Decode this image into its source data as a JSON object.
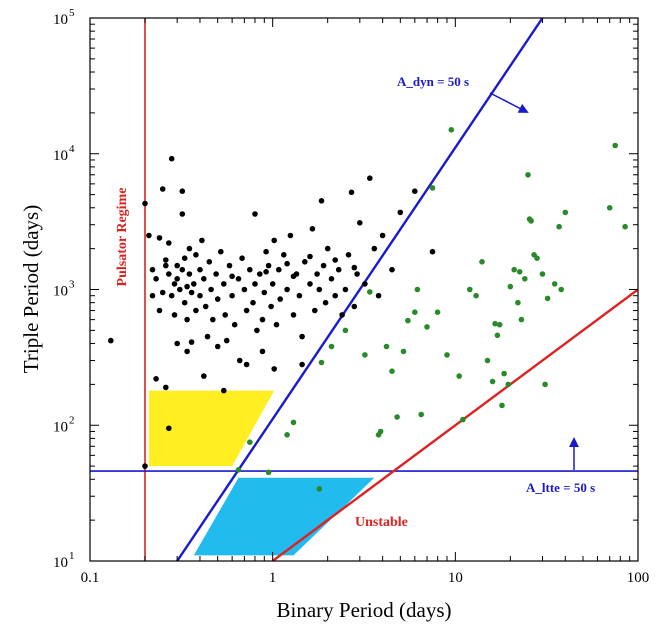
{
  "chart_data": {
    "type": "scatter",
    "title": "",
    "xlabel": "Binary Period (days)",
    "ylabel": "Triple Period (days)",
    "xscale": "log",
    "yscale": "log",
    "xlim": [
      0.1,
      100
    ],
    "ylim": [
      10,
      100000
    ],
    "grid": false,
    "x_ticks": [
      {
        "value": 0.1,
        "label": "0.1"
      },
      {
        "value": 1,
        "label": "1"
      },
      {
        "value": 10,
        "label": "10"
      },
      {
        "value": 100,
        "label": "100"
      }
    ],
    "y_ticks": [
      {
        "value": 10,
        "base": "10",
        "exp": "1"
      },
      {
        "value": 100,
        "base": "10",
        "exp": "2"
      },
      {
        "value": 1000,
        "base": "10",
        "exp": "3"
      },
      {
        "value": 10000,
        "base": "10",
        "exp": "4"
      },
      {
        "value": 100000,
        "base": "10",
        "exp": "5"
      }
    ],
    "colors": {
      "black_points": "#000000",
      "green_points": "#2a8a2a",
      "a_dyn_line": "#1a1acc",
      "a_ltte_line": "#1a1acc",
      "unstable_line": "#dd2222",
      "pulsator_line": "#dd2222",
      "yellow_region": "#ffee22",
      "cyan_region": "#22bbee"
    },
    "series": [
      {
        "color": "black",
        "points": [
          [
            0.2,
            4300
          ],
          [
            0.21,
            2500
          ],
          [
            0.22,
            1400
          ],
          [
            0.22,
            900
          ],
          [
            0.23,
            1200
          ],
          [
            0.24,
            2400
          ],
          [
            0.24,
            700
          ],
          [
            0.25,
            5500
          ],
          [
            0.25,
            950
          ],
          [
            0.26,
            1500
          ],
          [
            0.27,
            2200
          ],
          [
            0.27,
            1300
          ],
          [
            0.28,
            9200
          ],
          [
            0.28,
            900
          ],
          [
            0.29,
            1100
          ],
          [
            0.29,
            650
          ],
          [
            0.3,
            1500
          ],
          [
            0.3,
            1200
          ],
          [
            0.3,
            400
          ],
          [
            0.31,
            1000
          ],
          [
            0.32,
            5300
          ],
          [
            0.32,
            3600
          ],
          [
            0.32,
            1400
          ],
          [
            0.33,
            1700
          ],
          [
            0.33,
            800
          ],
          [
            0.34,
            600
          ],
          [
            0.34,
            350
          ],
          [
            0.35,
            1300
          ],
          [
            0.35,
            2000
          ],
          [
            0.36,
            950
          ],
          [
            0.37,
            1100
          ],
          [
            0.38,
            1800
          ],
          [
            0.38,
            700
          ],
          [
            0.4,
            1400
          ],
          [
            0.4,
            900
          ],
          [
            0.41,
            2300
          ],
          [
            0.42,
            1200
          ],
          [
            0.43,
            750
          ],
          [
            0.44,
            450
          ],
          [
            0.45,
            1600
          ],
          [
            0.46,
            1000
          ],
          [
            0.47,
            600
          ],
          [
            0.49,
            1300
          ],
          [
            0.5,
            850
          ],
          [
            0.52,
            1900
          ],
          [
            0.54,
            1100
          ],
          [
            0.55,
            650
          ],
          [
            0.58,
            1500
          ],
          [
            0.6,
            900
          ],
          [
            0.62,
            550
          ],
          [
            0.65,
            1200
          ],
          [
            0.66,
            300
          ],
          [
            0.68,
            1700
          ],
          [
            0.7,
            1000
          ],
          [
            0.72,
            700
          ],
          [
            0.75,
            1400
          ],
          [
            0.78,
            800
          ],
          [
            0.8,
            3600
          ],
          [
            0.8,
            1100
          ],
          [
            0.82,
            500
          ],
          [
            0.85,
            1300
          ],
          [
            0.88,
            600
          ],
          [
            0.9,
            950
          ],
          [
            0.92,
            1900
          ],
          [
            0.95,
            1500
          ],
          [
            0.98,
            750
          ],
          [
            1.0,
            1100
          ],
          [
            1.02,
            2300
          ],
          [
            1.05,
            550
          ],
          [
            1.08,
            1400
          ],
          [
            1.1,
            850
          ],
          [
            1.15,
            1800
          ],
          [
            1.2,
            1000
          ],
          [
            1.25,
            2500
          ],
          [
            1.3,
            650
          ],
          [
            1.35,
            1300
          ],
          [
            1.4,
            900
          ],
          [
            1.45,
            450
          ],
          [
            1.5,
            1600
          ],
          [
            1.6,
            1100
          ],
          [
            1.65,
            2800
          ],
          [
            1.7,
            700
          ],
          [
            1.75,
            1300
          ],
          [
            1.8,
            1000
          ],
          [
            1.85,
            4500
          ],
          [
            1.9,
            1500
          ],
          [
            1.95,
            800
          ],
          [
            2.0,
            2000
          ],
          [
            2.1,
            1200
          ],
          [
            2.2,
            900
          ],
          [
            2.3,
            1400
          ],
          [
            2.4,
            650
          ],
          [
            2.5,
            1000
          ],
          [
            2.6,
            1800
          ],
          [
            2.7,
            5200
          ],
          [
            2.8,
            750
          ],
          [
            2.9,
            1300
          ],
          [
            3.0,
            3100
          ],
          [
            3.2,
            1100
          ],
          [
            3.4,
            6600
          ],
          [
            3.6,
            2000
          ],
          [
            3.8,
            900
          ],
          [
            4.0,
            2500
          ],
          [
            4.5,
            1400
          ],
          [
            5.0,
            3700
          ],
          [
            6.0,
            5300
          ],
          [
            7.5,
            1900
          ],
          [
            0.13,
            420
          ],
          [
            0.2,
            50
          ],
          [
            0.27,
            95
          ],
          [
            0.23,
            220
          ],
          [
            0.36,
            410
          ],
          [
            0.54,
            180
          ],
          [
            0.26,
            190
          ],
          [
            0.42,
            230
          ],
          [
            1.02,
            260
          ],
          [
            1.45,
            280
          ],
          [
            0.72,
            280
          ],
          [
            0.88,
            350
          ],
          [
            0.56,
            420
          ],
          [
            0.5,
            380
          ],
          [
            0.92,
            1350
          ],
          [
            0.6,
            1250
          ],
          [
            0.34,
            1050
          ],
          [
            0.26,
            1650
          ],
          [
            1.6,
            1750
          ],
          [
            2.2,
            1650
          ],
          [
            1.3,
            1250
          ],
          [
            2.8,
            1450
          ],
          [
            1.2,
            1550
          ]
        ]
      },
      {
        "color": "green",
        "points": [
          [
            0.65,
            47
          ],
          [
            0.95,
            45
          ],
          [
            0.75,
            75
          ],
          [
            1.2,
            85
          ],
          [
            1.3,
            105
          ],
          [
            1.8,
            34
          ],
          [
            1.85,
            290
          ],
          [
            2.1,
            380
          ],
          [
            2.5,
            500
          ],
          [
            3.2,
            330
          ],
          [
            3.4,
            960
          ],
          [
            3.8,
            85
          ],
          [
            3.9,
            90
          ],
          [
            4.2,
            380
          ],
          [
            4.5,
            250
          ],
          [
            4.8,
            115
          ],
          [
            5.2,
            350
          ],
          [
            5.5,
            590
          ],
          [
            6.0,
            680
          ],
          [
            6.2,
            1000
          ],
          [
            6.5,
            120
          ],
          [
            7.0,
            530
          ],
          [
            7.5,
            5600
          ],
          [
            8.0,
            680
          ],
          [
            9.5,
            15000
          ],
          [
            10.5,
            230
          ],
          [
            11.0,
            110
          ],
          [
            9.0,
            330
          ],
          [
            12.0,
            1000
          ],
          [
            13.0,
            900
          ],
          [
            15.0,
            300
          ],
          [
            16.0,
            210
          ],
          [
            16.5,
            560
          ],
          [
            17.0,
            460
          ],
          [
            17.5,
            550
          ],
          [
            18.0,
            140
          ],
          [
            18.5,
            240
          ],
          [
            19.5,
            200
          ],
          [
            21.0,
            1400
          ],
          [
            22.0,
            800
          ],
          [
            23.0,
            600
          ],
          [
            24.0,
            1200
          ],
          [
            25.0,
            7000
          ],
          [
            25.5,
            3300
          ],
          [
            26.0,
            3200
          ],
          [
            27.0,
            1800
          ],
          [
            28.0,
            1700
          ],
          [
            30.0,
            1300
          ],
          [
            31.0,
            200
          ],
          [
            32.0,
            860
          ],
          [
            35.0,
            1100
          ],
          [
            37.0,
            2900
          ],
          [
            38.0,
            1000
          ],
          [
            40.0,
            3700
          ],
          [
            70.0,
            4000
          ],
          [
            75.0,
            11500
          ],
          [
            85.0,
            2900
          ],
          [
            22.5,
            1350
          ],
          [
            20.0,
            1050
          ],
          [
            14.0,
            1600
          ]
        ]
      }
    ],
    "lines": {
      "a_dyn": {
        "label": "A_dyn = 50 s",
        "from": [
          0.3,
          10
        ],
        "to": [
          30,
          100000
        ]
      },
      "a_ltte": {
        "label": "A_ltte = 50 s",
        "y": 46
      },
      "unstable": {
        "label": "Unstable",
        "from": [
          1,
          10
        ],
        "to": [
          100,
          1000
        ]
      },
      "pulsator": {
        "label": "Pulsator Regime",
        "x": 0.2
      }
    },
    "regions": {
      "yellow": [
        [
          0.21,
          180
        ],
        [
          1.02,
          180
        ],
        [
          0.6,
          50
        ],
        [
          0.21,
          50
        ]
      ],
      "cyan": [
        [
          0.65,
          41
        ],
        [
          3.6,
          41
        ],
        [
          1.3,
          11
        ],
        [
          0.37,
          11
        ]
      ]
    }
  }
}
